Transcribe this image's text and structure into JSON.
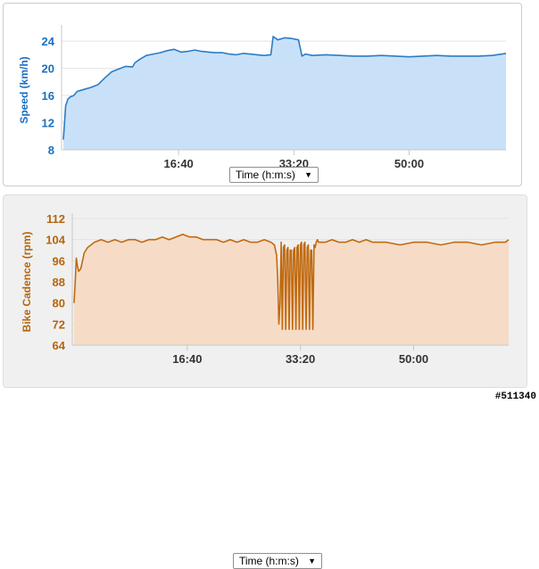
{
  "speed_panel": {
    "time_select": "Time (h:m:s)",
    "time_select_arrow": "▼"
  },
  "cadence_panel": {
    "time_select": "Time (h:m:s)",
    "time_select_arrow": "▼"
  },
  "watermark": "#511340",
  "chart_data": [
    {
      "type": "area",
      "ylabel": "Speed (km/h)",
      "xlabel": "",
      "ylim": [
        8,
        25.6
      ],
      "yticks": [
        "8",
        "12",
        "16",
        "20",
        "24"
      ],
      "xticks": [
        "16:40",
        "33:20",
        "50:00"
      ],
      "grid": true,
      "line_color": "#2a7dc8",
      "fill_color": "#c9e1f8",
      "label_color": "#1a6fbf",
      "series": [
        {
          "x": [
            "0:00",
            "0:20",
            "0:40",
            "1:00",
            "1:30",
            "2:00",
            "3:00",
            "4:00",
            "5:00",
            "6:00",
            "7:00",
            "8:00",
            "9:00",
            "10:00",
            "10:20",
            "11:00",
            "12:00",
            "13:00",
            "14:00",
            "15:00",
            "16:00",
            "17:00",
            "18:00",
            "19:00",
            "20:00",
            "21:00",
            "22:00",
            "23:00",
            "24:00",
            "25:00",
            "26:00",
            "27:00",
            "28:00",
            "29:00",
            "30:00",
            "30:20",
            "31:00",
            "32:00",
            "33:00",
            "34:00",
            "34:30",
            "35:00",
            "36:00",
            "38:00",
            "40:00",
            "42:00",
            "44:00",
            "46:00",
            "48:00",
            "50:00",
            "52:00",
            "54:00",
            "56:00",
            "58:00",
            "60:00",
            "62:00",
            "64:00"
          ],
          "values": [
            9.5,
            14.5,
            15.5,
            15.8,
            16.0,
            16.6,
            16.9,
            17.2,
            17.6,
            18.6,
            19.5,
            19.9,
            20.3,
            20.2,
            20.8,
            21.3,
            21.9,
            22.1,
            22.3,
            22.6,
            22.8,
            22.4,
            22.5,
            22.7,
            22.5,
            22.4,
            22.3,
            22.3,
            22.1,
            22.0,
            22.2,
            22.1,
            22.0,
            21.9,
            22.0,
            24.7,
            24.2,
            24.5,
            24.4,
            24.2,
            21.8,
            22.1,
            21.9,
            22.0,
            21.9,
            21.8,
            21.8,
            21.9,
            21.8,
            21.7,
            21.8,
            21.9,
            21.8,
            21.8,
            21.8,
            21.9,
            22.2
          ]
        }
      ]
    },
    {
      "type": "area",
      "ylabel": "Bike Cadence (rpm)",
      "xlabel": "",
      "ylim": [
        64,
        112
      ],
      "yticks": [
        "64",
        "72",
        "80",
        "88",
        "96",
        "104",
        "112"
      ],
      "xticks": [
        "16:40",
        "33:20",
        "50:00"
      ],
      "grid": true,
      "line_color": "#c06a10",
      "fill_color": "#f6dcc7",
      "label_color": "#b5650e",
      "series": [
        {
          "x": [
            "0:00",
            "0:10",
            "0:20",
            "0:30",
            "0:40",
            "1:00",
            "1:30",
            "2:00",
            "2:30",
            "3:00",
            "4:00",
            "5:00",
            "6:00",
            "7:00",
            "8:00",
            "9:00",
            "10:00",
            "11:00",
            "12:00",
            "13:00",
            "14:00",
            "15:00",
            "16:00",
            "17:00",
            "18:00",
            "19:00",
            "20:00",
            "21:00",
            "22:00",
            "23:00",
            "24:00",
            "25:00",
            "26:00",
            "27:00",
            "28:00",
            "29:00",
            "29:30",
            "29:50",
            "30:00",
            "30:10",
            "30:20",
            "30:30",
            "30:40",
            "30:50",
            "31:00",
            "31:10",
            "31:20",
            "31:30",
            "31:40",
            "31:50",
            "32:00",
            "32:10",
            "32:20",
            "32:30",
            "32:40",
            "32:50",
            "33:00",
            "33:10",
            "33:20",
            "33:30",
            "33:40",
            "33:50",
            "34:00",
            "34:10",
            "34:20",
            "34:30",
            "34:40",
            "34:50",
            "35:00",
            "35:10",
            "35:20",
            "35:30",
            "35:40",
            "35:50",
            "36:00",
            "37:00",
            "38:00",
            "39:00",
            "40:00",
            "41:00",
            "42:00",
            "43:00",
            "44:00",
            "46:00",
            "48:00",
            "50:00",
            "52:00",
            "54:00",
            "56:00",
            "58:00",
            "60:00",
            "62:00",
            "63:30",
            "64:00"
          ],
          "values": [
            80,
            88,
            97,
            94,
            92,
            93,
            99,
            101,
            102,
            103,
            104,
            103,
            104,
            103,
            104,
            104,
            103,
            104,
            104,
            105,
            104,
            105,
            106,
            105,
            105,
            104,
            104,
            104,
            103,
            104,
            103,
            104,
            103,
            103,
            104,
            103,
            102,
            98,
            88,
            72,
            80,
            103,
            70,
            101,
            102,
            70,
            100,
            101,
            70,
            100,
            100,
            70,
            100,
            101,
            70,
            101,
            102,
            70,
            102,
            103,
            70,
            102,
            103,
            70,
            101,
            102,
            70,
            100,
            100,
            70,
            102,
            101,
            103,
            104,
            103,
            103,
            104,
            103,
            103,
            104,
            103,
            104,
            103,
            103,
            102,
            103,
            103,
            102,
            103,
            103,
            102,
            103,
            103,
            104
          ]
        }
      ]
    }
  ]
}
